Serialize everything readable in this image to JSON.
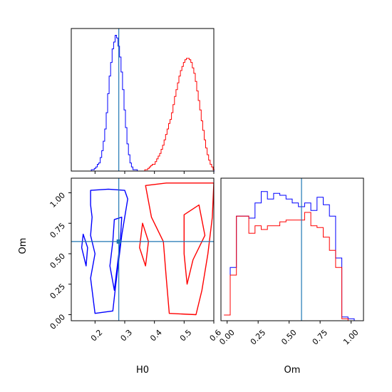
{
  "colors": {
    "series_a": "#0000ff",
    "series_b": "#ff0000",
    "truth": "#1f77b4",
    "axes": "#000000"
  },
  "chart_data": [
    {
      "type": "histogram",
      "panel": "H0 marginal",
      "x": [
        0.13,
        0.135,
        0.14,
        0.145,
        0.15,
        0.155,
        0.16,
        0.165,
        0.17,
        0.175,
        0.18,
        0.185,
        0.19,
        0.195,
        0.2,
        0.205,
        0.21,
        0.215,
        0.22,
        0.225,
        0.23,
        0.235,
        0.24,
        0.245,
        0.25,
        0.255,
        0.26,
        0.265,
        0.27,
        0.275,
        0.28,
        0.285,
        0.29,
        0.295,
        0.3,
        0.305,
        0.31,
        0.315,
        0.32,
        0.325,
        0.33,
        0.335,
        0.34,
        0.345,
        0.35,
        0.355,
        0.36,
        0.365,
        0.37,
        0.375,
        0.38,
        0.385,
        0.39,
        0.395,
        0.4,
        0.405,
        0.41,
        0.415,
        0.42,
        0.425,
        0.43,
        0.435,
        0.44,
        0.445,
        0.45,
        0.455,
        0.46,
        0.465,
        0.47,
        0.475,
        0.48,
        0.485,
        0.49,
        0.495,
        0.5,
        0.505,
        0.51,
        0.515,
        0.52,
        0.525,
        0.53,
        0.535,
        0.54,
        0.545,
        0.55,
        0.555,
        0.56,
        0.565,
        0.57,
        0.575,
        0.58,
        0.585,
        0.59,
        0.595,
        0.6
      ],
      "series": [
        {
          "values": [
            0,
            0,
            0,
            0,
            0,
            0,
            0,
            0,
            0,
            0,
            0,
            0,
            0.01,
            0.01,
            0.02,
            0.03,
            0.05,
            0.06,
            0.1,
            0.15,
            0.22,
            0.31,
            0.43,
            0.57,
            0.7,
            0.8,
            0.9,
            0.95,
            1,
            0.98,
            0.92,
            0.84,
            0.73,
            0.6,
            0.45,
            0.32,
            0.2,
            0.12,
            0.06,
            0.03,
            0.01,
            0.01,
            0.01,
            0,
            0,
            0,
            0,
            0,
            0,
            0,
            0,
            0,
            0,
            0,
            0,
            0,
            0,
            0,
            0,
            0,
            0,
            0,
            0,
            0,
            0,
            0,
            0,
            0,
            0,
            0,
            0,
            0,
            0,
            0,
            0,
            0,
            0,
            0,
            0,
            0,
            0,
            0,
            0,
            0,
            0,
            0,
            0,
            0,
            0,
            0,
            0,
            0,
            0,
            0,
            0
          ]
        },
        {
          "values": [
            0,
            0,
            0,
            0,
            0,
            0,
            0,
            0,
            0,
            0,
            0,
            0,
            0,
            0,
            0,
            0,
            0,
            0,
            0,
            0,
            0,
            0,
            0,
            0,
            0,
            0,
            0,
            0,
            0,
            0,
            0,
            0,
            0,
            0,
            0,
            0,
            0,
            0,
            0,
            0,
            0,
            0,
            0,
            0,
            0,
            0,
            0,
            0,
            0.01,
            0.01,
            0.02,
            0.03,
            0.04,
            0.05,
            0.05,
            0.07,
            0.09,
            0.11,
            0.13,
            0.16,
            0.19,
            0.23,
            0.27,
            0.31,
            0.35,
            0.38,
            0.43,
            0.49,
            0.55,
            0.6,
            0.65,
            0.7,
            0.74,
            0.77,
            0.8,
            0.82,
            0.83,
            0.83,
            0.82,
            0.8,
            0.76,
            0.72,
            0.66,
            0.59,
            0.52,
            0.45,
            0.37,
            0.3,
            0.23,
            0.17,
            0.12,
            0.08,
            0.05,
            0.03,
            0.01
          ]
        }
      ],
      "xlim": [
        0.12,
        0.6
      ],
      "truth": 0.28
    },
    {
      "type": "histogram",
      "panel": "Om marginal",
      "x": [
        0.0,
        0.05,
        0.1,
        0.15,
        0.2,
        0.25,
        0.3,
        0.35,
        0.4,
        0.45,
        0.5,
        0.55,
        0.6,
        0.65,
        0.7,
        0.75,
        0.8,
        0.85,
        0.9,
        0.95,
        1.0,
        1.05
      ],
      "series": [
        {
          "values": [
            0.03,
            0.28,
            0.55,
            0.55,
            0.54,
            0.62,
            0.68,
            0.64,
            0.67,
            0.66,
            0.64,
            0.62,
            0.6,
            0.62,
            0.58,
            0.65,
            0.61,
            0.55,
            0.33,
            0.02,
            0.01,
            0.0
          ]
        },
        {
          "values": [
            0.03,
            0.24,
            0.55,
            0.55,
            0.46,
            0.5,
            0.48,
            0.5,
            0.5,
            0.52,
            0.53,
            0.53,
            0.53,
            0.57,
            0.5,
            0.49,
            0.44,
            0.37,
            0.28,
            0.01,
            0.0,
            0.0
          ]
        }
      ],
      "xlim": [
        -0.05,
        1.1
      ],
      "truth": 0.6
    },
    {
      "type": "contour",
      "panel": "H0 vs Om joint",
      "xlabel": "H0",
      "ylabel": "Om",
      "xlim": [
        0.12,
        0.6
      ],
      "ylim": [
        -0.05,
        1.12
      ],
      "x_ticks": [
        "0.2",
        "0.3",
        "0.4",
        "0.5",
        "0.6"
      ],
      "y_ticks": [
        "0.00",
        "0.25",
        "0.50",
        "0.75",
        "1.00"
      ],
      "truth": [
        0.28,
        0.6
      ],
      "series": [
        {
          "contours": [
            [
              [
                0.185,
                1.02
              ],
              [
                0.245,
                1.03
              ],
              [
                0.3,
                1.02
              ],
              [
                0.31,
                0.95
              ],
              [
                0.3,
                0.8
              ],
              [
                0.29,
                0.65
              ],
              [
                0.28,
                0.45
              ],
              [
                0.27,
                0.25
              ],
              [
                0.26,
                0.03
              ],
              [
                0.2,
                0.01
              ],
              [
                0.185,
                0.3
              ],
              [
                0.2,
                0.5
              ],
              [
                0.185,
                0.65
              ],
              [
                0.19,
                0.8
              ],
              [
                0.185,
                0.9
              ],
              [
                0.185,
                1.02
              ]
            ],
            [
              [
                0.265,
                0.78
              ],
              [
                0.29,
                0.8
              ],
              [
                0.285,
                0.6
              ],
              [
                0.275,
                0.4
              ],
              [
                0.265,
                0.2
              ],
              [
                0.25,
                0.4
              ],
              [
                0.26,
                0.6
              ],
              [
                0.265,
                0.78
              ]
            ],
            [
              [
                0.16,
                0.66
              ],
              [
                0.175,
                0.55
              ],
              [
                0.17,
                0.4
              ],
              [
                0.155,
                0.55
              ],
              [
                0.16,
                0.66
              ]
            ]
          ]
        },
        {
          "contours": [
            [
              [
                0.37,
                1.06
              ],
              [
                0.44,
                1.08
              ],
              [
                0.6,
                1.08
              ],
              [
                0.595,
                0.8
              ],
              [
                0.58,
                0.5
              ],
              [
                0.56,
                0.2
              ],
              [
                0.54,
                0.0
              ],
              [
                0.45,
                0.01
              ],
              [
                0.44,
                0.3
              ],
              [
                0.43,
                0.6
              ],
              [
                0.39,
                0.8
              ],
              [
                0.37,
                1.06
              ]
            ],
            [
              [
                0.5,
                0.82
              ],
              [
                0.55,
                0.9
              ],
              [
                0.57,
                0.65
              ],
              [
                0.53,
                0.45
              ],
              [
                0.51,
                0.25
              ],
              [
                0.5,
                0.5
              ],
              [
                0.5,
                0.82
              ]
            ],
            [
              [
                0.36,
                0.75
              ],
              [
                0.38,
                0.6
              ],
              [
                0.37,
                0.4
              ],
              [
                0.35,
                0.55
              ],
              [
                0.36,
                0.75
              ]
            ]
          ]
        }
      ]
    }
  ],
  "labels": {
    "x_h0": "H0",
    "x_om": "Om",
    "y_om": "Om",
    "om_ticks": [
      "0.00",
      "0.25",
      "0.50",
      "0.75",
      "1.00"
    ]
  }
}
